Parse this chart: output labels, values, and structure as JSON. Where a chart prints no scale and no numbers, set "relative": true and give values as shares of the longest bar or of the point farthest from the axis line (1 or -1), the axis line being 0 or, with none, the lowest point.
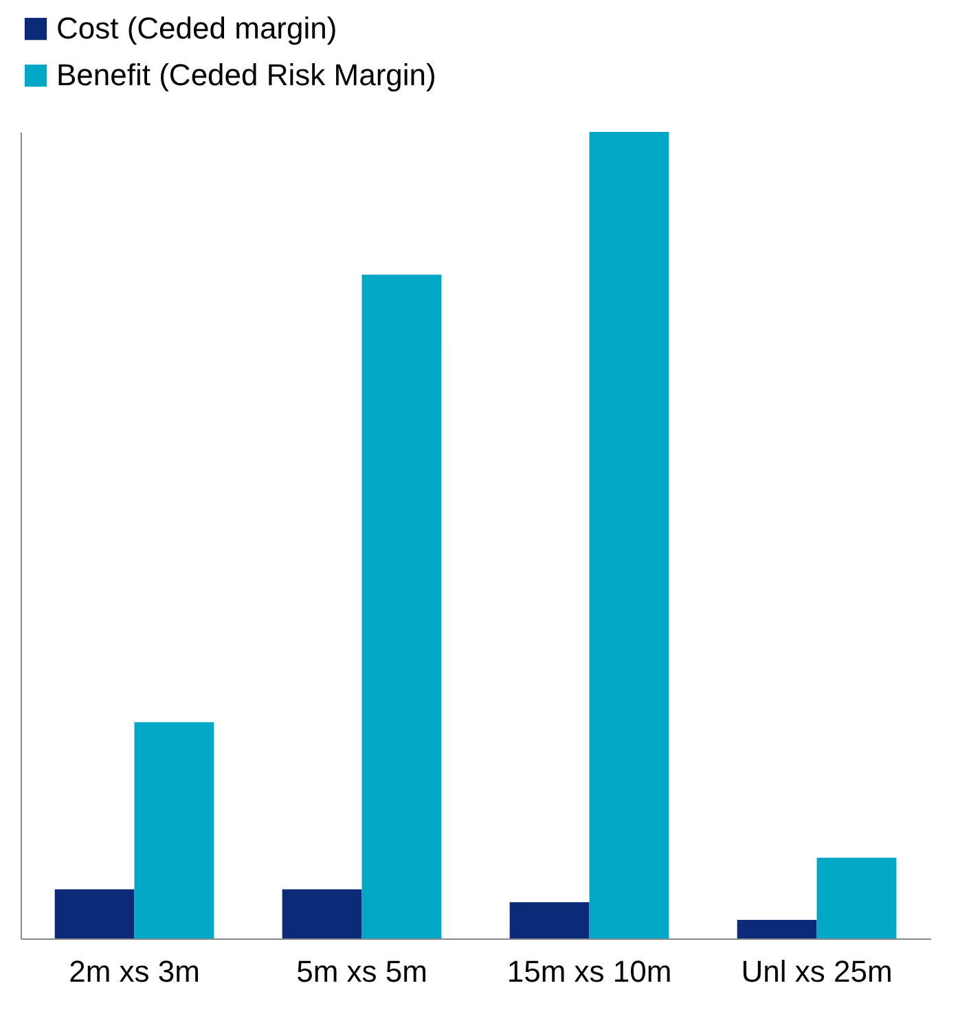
{
  "chart_data": {
    "type": "bar",
    "relative": true,
    "categories": [
      "2m xs 3m",
      "5m xs 5m",
      "15m xs 10m",
      "Unl xs 25m"
    ],
    "series": [
      {
        "name": "Cost (Ceded margin)",
        "color": "#0b2a78",
        "values": [
          0.061,
          0.061,
          0.045,
          0.023
        ]
      },
      {
        "name": "Benefit (Ceded Risk Margin)",
        "color": "#00a8c6",
        "values": [
          0.268,
          0.823,
          1,
          0.1
        ]
      }
    ],
    "legend": "top",
    "grid": false
  }
}
